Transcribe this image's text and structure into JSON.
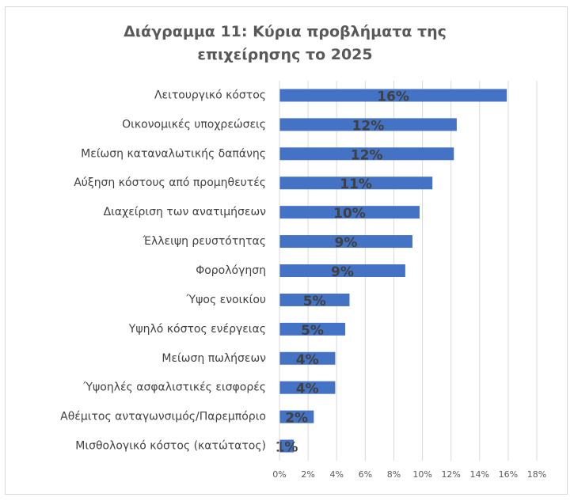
{
  "chart_data": {
    "type": "bar",
    "orientation": "horizontal",
    "title": "Διάγραμμα 11: Κύρια προβλήματα της επιχείρησης το 2025",
    "categories": [
      "Λειτουργικό κόστος",
      "Οικονομικές υποχρεώσεις",
      "Μείωση καταναλωτικής δαπάνης",
      "Αύξηση κόστους από προμηθευτές",
      "Διαχείριση των ανατιμήσεων",
      "Έλλειψη ρευστότητας",
      "Φορολόγηση",
      "Ύψος ενοικίου",
      "Υψηλό κόστος ενέργειας",
      "Μείωση πωλήσεων",
      "Ύψοηλές ασφαλιστικές εισφορές",
      "Αθέμιτος ανταγωνσιμός/Παρεμπόριο",
      "Μισθολογικό κόστος (κατώτατος)"
    ],
    "values": [
      15.9,
      12.4,
      12.2,
      10.7,
      9.8,
      9.3,
      8.8,
      4.9,
      4.6,
      3.9,
      3.9,
      2.4,
      1.0
    ],
    "value_labels": [
      "16%",
      "12%",
      "12%",
      "11%",
      "10%",
      "9%",
      "9%",
      "5%",
      "5%",
      "4%",
      "4%",
      "2%",
      "1%"
    ],
    "color": "#4472c4",
    "xlim": [
      0,
      18
    ],
    "xticks": [
      {
        "value": 0,
        "label": "0%"
      },
      {
        "value": 2,
        "label": "2%"
      },
      {
        "value": 4,
        "label": "4%"
      },
      {
        "value": 6,
        "label": "6%"
      },
      {
        "value": 8,
        "label": "8%"
      },
      {
        "value": 10,
        "label": "10%"
      },
      {
        "value": 12,
        "label": "12%"
      },
      {
        "value": 14,
        "label": "14%"
      },
      {
        "value": 16,
        "label": "16%"
      },
      {
        "value": 18,
        "label": "18%"
      }
    ],
    "grid": true
  }
}
